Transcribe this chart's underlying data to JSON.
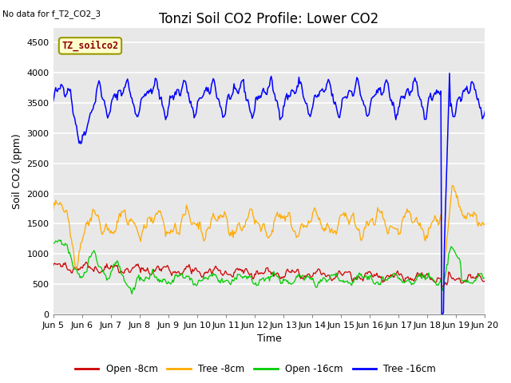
{
  "title": "Tonzi Soil CO2 Profile: Lower CO2",
  "subtitle": "No data for f_T2_CO2_3",
  "ylabel": "Soil CO2 (ppm)",
  "xlabel": "Time",
  "legend_label": "TZ_soilco2",
  "ylim": [
    0,
    4750
  ],
  "yticks": [
    0,
    500,
    1000,
    1500,
    2000,
    2500,
    3000,
    3500,
    4000,
    4500
  ],
  "colors": {
    "open_8cm": "#cc0000",
    "tree_8cm": "#ffaa00",
    "open_16cm": "#00cc00",
    "tree_16cm": "#0000ff"
  },
  "legend_entries": [
    "Open -8cm",
    "Tree -8cm",
    "Open -16cm",
    "Tree -16cm"
  ],
  "fig_bg_color": "#ffffff",
  "plot_bg_color": "#e8e8e8",
  "grid_color": "#ffffff",
  "title_fontsize": 12,
  "label_fontsize": 9,
  "tick_label_fontsize": 8,
  "n_points": 500,
  "x_start_day": 5,
  "x_end_day": 20,
  "xtick_days": [
    5,
    6,
    7,
    8,
    9,
    10,
    11,
    12,
    13,
    14,
    15,
    16,
    17,
    18,
    19,
    20
  ],
  "xtick_labels": [
    "Jun 5",
    "Jun 6",
    "Jun 7",
    "Jun 8",
    "Jun 9",
    "Jun 10",
    "Jun 11",
    "Jun 12",
    "Jun 13",
    "Jun 14",
    "Jun 15",
    "Jun 16",
    "Jun 17",
    "Jun 18",
    "Jun 19",
    "Jun 20"
  ]
}
